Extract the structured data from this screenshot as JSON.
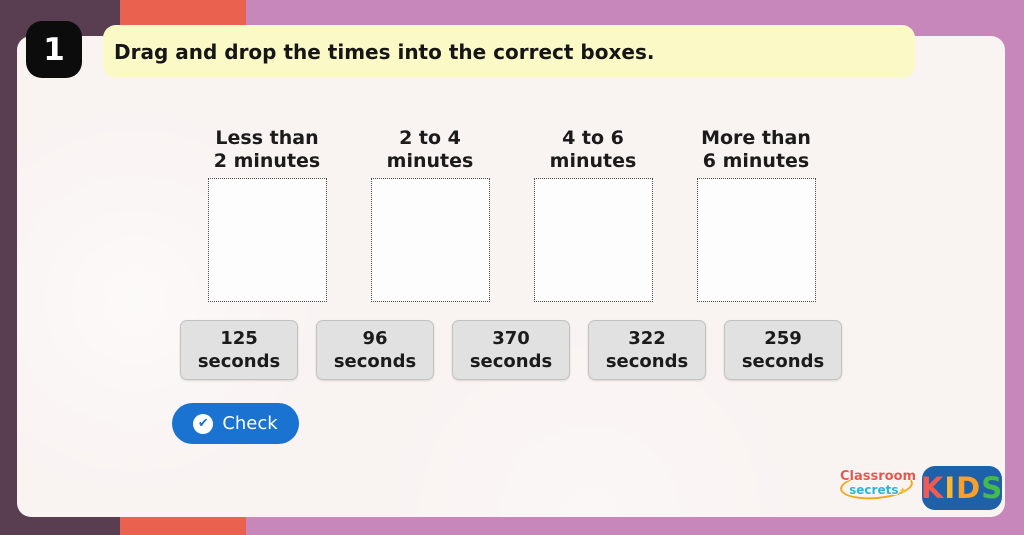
{
  "question": {
    "number": "1",
    "prompt": "Drag and drop the times into the correct boxes."
  },
  "categories": [
    {
      "line1": "Less than",
      "line2": "2 minutes"
    },
    {
      "line1": "2 to 4",
      "line2": "minutes"
    },
    {
      "line1": "4 to 6",
      "line2": "minutes"
    },
    {
      "line1": "More than",
      "line2": "6 minutes"
    }
  ],
  "tiles": [
    {
      "value": "125",
      "unit": "seconds"
    },
    {
      "value": "96",
      "unit": "seconds"
    },
    {
      "value": "370",
      "unit": "seconds"
    },
    {
      "value": "322",
      "unit": "seconds"
    },
    {
      "value": "259",
      "unit": "seconds"
    }
  ],
  "check_button": {
    "label": "Check",
    "icon_glyph": "✔"
  },
  "branding": {
    "classroom_line1": "Classroom",
    "classroom_line2": "secrets",
    "star_glyph": "✦",
    "kids_letters": [
      {
        "char": "K",
        "color": "#ef5a52"
      },
      {
        "char": "I",
        "color": "#fcb62f"
      },
      {
        "char": "D",
        "color": "#f9a02c"
      },
      {
        "char": "S",
        "color": "#46b850"
      }
    ]
  },
  "colors": {
    "frame_pink": "#c887bb",
    "frame_purple": "#593e52",
    "frame_orange": "#ea6150",
    "card_background": "#f9f3f2",
    "banner_yellow": "#fbf9c6",
    "button_blue": "#1a72d1",
    "tile_gray": "#e2e1e1",
    "text_dark": "#1b1b1b"
  }
}
